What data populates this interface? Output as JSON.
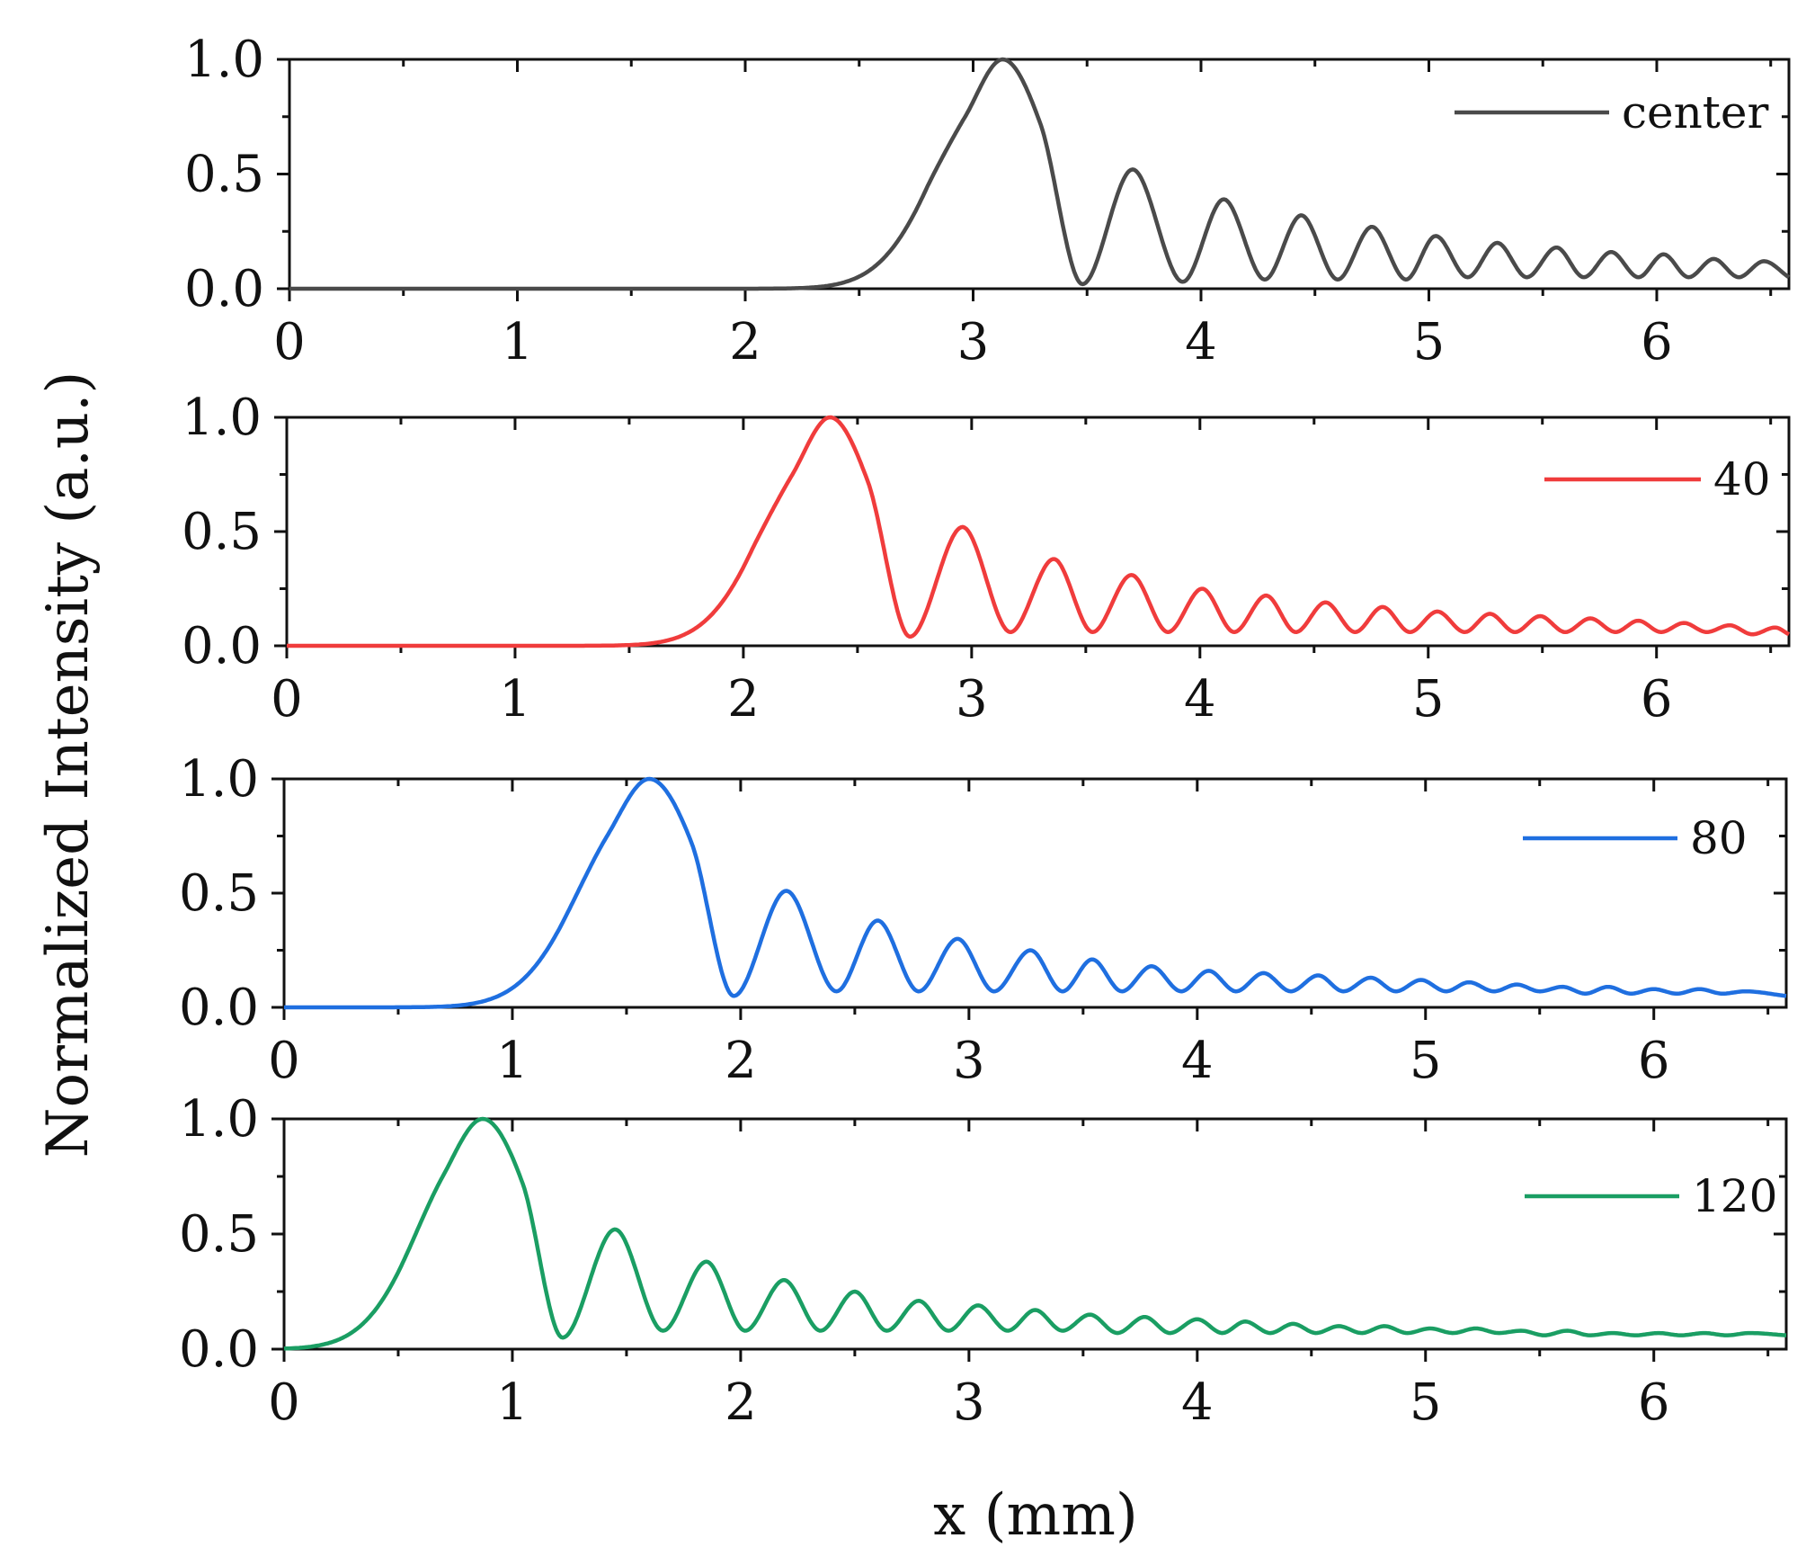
{
  "chart_data": {
    "type": "line",
    "ylabel": "Normalized Intensity (a.u.)",
    "xlabel": "x (mm)",
    "shared_axes": {
      "xlim": [
        0,
        6.58
      ],
      "ylim": [
        0,
        1.0
      ],
      "xticks": [
        0,
        1,
        2,
        3,
        4,
        5,
        6
      ],
      "xtick_labels": [
        "0",
        "1",
        "2",
        "3",
        "4",
        "5",
        "6"
      ],
      "yticks": [
        0,
        0.5,
        1.0
      ],
      "ytick_labels": [
        "0.0",
        "0.5",
        "1.0"
      ]
    },
    "panels": [
      {
        "legend": "center",
        "color": "#4a4a4a",
        "peak_x": 3.13,
        "dx": 0.33,
        "sigma": 0.26,
        "fringe_peaks": [
          [
            3.7,
            0.52
          ],
          [
            4.1,
            0.39
          ],
          [
            4.44,
            0.32
          ],
          [
            4.75,
            0.27
          ],
          [
            5.03,
            0.23
          ],
          [
            5.3,
            0.2
          ],
          [
            5.56,
            0.18
          ],
          [
            5.8,
            0.16
          ],
          [
            6.03,
            0.15
          ],
          [
            6.25,
            0.13
          ],
          [
            6.47,
            0.12
          ]
        ],
        "fringe_minima": [
          [
            3.48,
            0.02
          ],
          [
            3.92,
            0.03
          ],
          [
            4.28,
            0.04
          ],
          [
            4.6,
            0.04
          ],
          [
            4.9,
            0.04
          ],
          [
            5.17,
            0.05
          ],
          [
            5.43,
            0.05
          ],
          [
            5.68,
            0.05
          ],
          [
            5.92,
            0.05
          ],
          [
            6.14,
            0.05
          ],
          [
            6.36,
            0.05
          ],
          [
            6.58,
            0.05
          ]
        ]
      },
      {
        "legend": "40",
        "color": "#f03c3c",
        "peak_x": 2.38,
        "dx": 0.33,
        "sigma": 0.26,
        "fringe_peaks": [
          [
            2.96,
            0.52
          ],
          [
            3.36,
            0.38
          ],
          [
            3.7,
            0.31
          ],
          [
            4.01,
            0.25
          ],
          [
            4.29,
            0.22
          ],
          [
            4.55,
            0.19
          ],
          [
            4.8,
            0.17
          ],
          [
            5.04,
            0.15
          ],
          [
            5.27,
            0.14
          ],
          [
            5.49,
            0.13
          ],
          [
            5.71,
            0.12
          ],
          [
            5.92,
            0.11
          ],
          [
            6.12,
            0.1
          ],
          [
            6.32,
            0.09
          ],
          [
            6.52,
            0.08
          ]
        ],
        "fringe_minima": [
          [
            2.73,
            0.04
          ],
          [
            3.17,
            0.06
          ],
          [
            3.53,
            0.06
          ],
          [
            3.86,
            0.06
          ],
          [
            4.15,
            0.06
          ],
          [
            4.42,
            0.06
          ],
          [
            4.68,
            0.06
          ],
          [
            4.92,
            0.06
          ],
          [
            5.16,
            0.06
          ],
          [
            5.38,
            0.06
          ],
          [
            5.6,
            0.06
          ],
          [
            5.82,
            0.06
          ],
          [
            6.02,
            0.06
          ],
          [
            6.22,
            0.06
          ],
          [
            6.42,
            0.05
          ],
          [
            6.58,
            0.05
          ]
        ]
      },
      {
        "legend": "80",
        "color": "#1f6fe0",
        "peak_x": 1.6,
        "dx": 0.37,
        "sigma": 0.27,
        "fringe_peaks": [
          [
            2.2,
            0.51
          ],
          [
            2.6,
            0.38
          ],
          [
            2.95,
            0.3
          ],
          [
            3.27,
            0.25
          ],
          [
            3.54,
            0.21
          ],
          [
            3.8,
            0.18
          ],
          [
            4.05,
            0.16
          ],
          [
            4.29,
            0.15
          ],
          [
            4.53,
            0.14
          ],
          [
            4.76,
            0.13
          ],
          [
            4.98,
            0.12
          ],
          [
            5.19,
            0.11
          ],
          [
            5.4,
            0.1
          ],
          [
            5.6,
            0.09
          ],
          [
            5.8,
            0.09
          ],
          [
            6.0,
            0.08
          ],
          [
            6.2,
            0.08
          ],
          [
            6.4,
            0.07
          ]
        ],
        "fringe_minima": [
          [
            1.97,
            0.05
          ],
          [
            2.42,
            0.07
          ],
          [
            2.78,
            0.07
          ],
          [
            3.11,
            0.07
          ],
          [
            3.41,
            0.07
          ],
          [
            3.67,
            0.07
          ],
          [
            3.93,
            0.07
          ],
          [
            4.17,
            0.07
          ],
          [
            4.41,
            0.07
          ],
          [
            4.64,
            0.07
          ],
          [
            4.87,
            0.07
          ],
          [
            5.09,
            0.07
          ],
          [
            5.3,
            0.07
          ],
          [
            5.5,
            0.07
          ],
          [
            5.7,
            0.06
          ],
          [
            5.9,
            0.06
          ],
          [
            6.1,
            0.06
          ],
          [
            6.3,
            0.06
          ],
          [
            6.58,
            0.05
          ]
        ]
      },
      {
        "legend": "120",
        "color": "#1a9e63",
        "peak_x": 0.87,
        "dx": 0.35,
        "sigma": 0.25,
        "fringe_peaks": [
          [
            1.45,
            0.52
          ],
          [
            1.85,
            0.38
          ],
          [
            2.19,
            0.3
          ],
          [
            2.5,
            0.25
          ],
          [
            2.78,
            0.21
          ],
          [
            3.04,
            0.19
          ],
          [
            3.29,
            0.17
          ],
          [
            3.53,
            0.15
          ],
          [
            3.77,
            0.14
          ],
          [
            4.0,
            0.13
          ],
          [
            4.21,
            0.12
          ],
          [
            4.42,
            0.11
          ],
          [
            4.62,
            0.1
          ],
          [
            4.82,
            0.1
          ],
          [
            5.02,
            0.09
          ],
          [
            5.22,
            0.09
          ],
          [
            5.42,
            0.08
          ],
          [
            5.62,
            0.08
          ],
          [
            5.82,
            0.07
          ],
          [
            6.02,
            0.07
          ],
          [
            6.22,
            0.07
          ],
          [
            6.42,
            0.07
          ]
        ],
        "fringe_minima": [
          [
            1.22,
            0.05
          ],
          [
            1.66,
            0.08
          ],
          [
            2.02,
            0.08
          ],
          [
            2.35,
            0.08
          ],
          [
            2.64,
            0.08
          ],
          [
            2.91,
            0.08
          ],
          [
            3.17,
            0.08
          ],
          [
            3.41,
            0.08
          ],
          [
            3.65,
            0.07
          ],
          [
            3.88,
            0.07
          ],
          [
            4.11,
            0.07
          ],
          [
            4.32,
            0.07
          ],
          [
            4.52,
            0.07
          ],
          [
            4.72,
            0.07
          ],
          [
            4.92,
            0.07
          ],
          [
            5.12,
            0.07
          ],
          [
            5.32,
            0.07
          ],
          [
            5.52,
            0.06
          ],
          [
            5.72,
            0.06
          ],
          [
            5.92,
            0.06
          ],
          [
            6.12,
            0.06
          ],
          [
            6.32,
            0.06
          ],
          [
            6.58,
            0.06
          ]
        ]
      }
    ]
  }
}
